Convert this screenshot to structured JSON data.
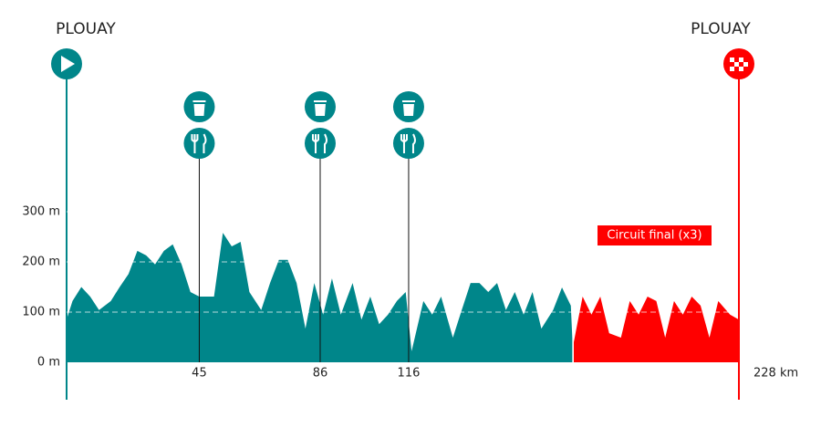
{
  "chart_data": {
    "type": "elevation-profile",
    "start": "PLOUAY",
    "finish": "PLOUAY",
    "xlim": [
      0,
      228
    ],
    "ylim": [
      0,
      300
    ],
    "yticks": [
      {
        "value": 0,
        "label": "0 m"
      },
      {
        "value": 100,
        "label": "100 m"
      },
      {
        "value": 200,
        "label": "200 m"
      },
      {
        "value": 300,
        "label": "300 m"
      }
    ],
    "xticks": [
      45,
      86,
      116,
      {
        "value": 228,
        "label": "228 km"
      }
    ],
    "feed_zones": [
      45,
      86,
      116
    ],
    "series": [
      {
        "color": "#00868a",
        "x": [
          0,
          2,
          5,
          8,
          11,
          15,
          18,
          21,
          24,
          27,
          30,
          33,
          36,
          39,
          42,
          45,
          50,
          53,
          56,
          59,
          62,
          66,
          69,
          72,
          75,
          78,
          81,
          84,
          87,
          90,
          93,
          97,
          100,
          103,
          106,
          109,
          112,
          115,
          117,
          121,
          124,
          127,
          131,
          134,
          137,
          140,
          143,
          146,
          149,
          152,
          155,
          158,
          161,
          165,
          168,
          171,
          171.5
        ],
        "values": [
          85,
          122,
          150,
          131,
          104,
          122,
          150,
          176,
          222,
          213,
          195,
          222,
          235,
          195,
          140,
          131,
          131,
          258,
          231,
          240,
          140,
          104,
          158,
          204,
          204,
          158,
          67,
          158,
          95,
          167,
          95,
          158,
          85,
          131,
          76,
          95,
          122,
          140,
          22,
          122,
          95,
          131,
          49,
          104,
          158,
          158,
          140,
          158,
          104,
          140,
          95,
          140,
          67,
          104,
          149,
          113,
          49
        ]
      },
      {
        "name": "Circuit final (x3)",
        "color": "#ff0000",
        "x": [
          172,
          175,
          178,
          181,
          184,
          188,
          191,
          194,
          197,
          200,
          203,
          206,
          209,
          212,
          215,
          218,
          221,
          225,
          228
        ],
        "values": [
          40,
          131,
          95,
          131,
          58,
          49,
          122,
          95,
          131,
          122,
          49,
          122,
          95,
          131,
          113,
          49,
          122,
          95,
          85
        ]
      }
    ]
  }
}
